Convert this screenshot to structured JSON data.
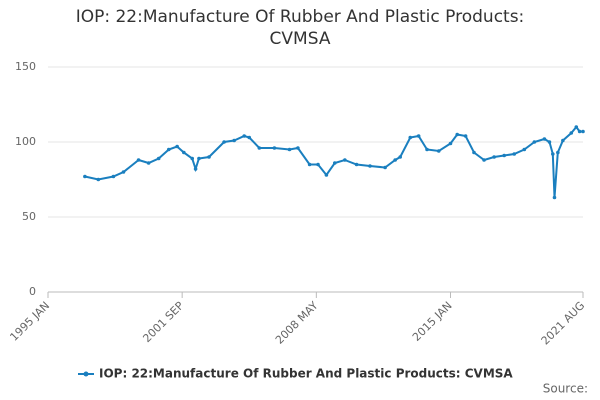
{
  "chart_data": {
    "type": "line",
    "title": "IOP: 22:Manufacture Of Rubber And Plastic Products: CVMSA",
    "x": [
      "1996-11",
      "1997-07",
      "1998-04",
      "1998-10",
      "1999-07",
      "2000-01",
      "2000-07",
      "2001-01",
      "2001-06",
      "2001-10",
      "2002-03",
      "2002-05",
      "2002-07",
      "2003-01",
      "2003-10",
      "2004-04",
      "2004-10",
      "2005-01",
      "2005-07",
      "2006-04",
      "2007-01",
      "2007-06",
      "2008-01",
      "2008-06",
      "2008-11",
      "2009-04",
      "2009-10",
      "2010-05",
      "2011-01",
      "2011-10",
      "2012-04",
      "2012-07",
      "2013-01",
      "2013-06",
      "2013-11",
      "2014-06",
      "2015-01",
      "2015-05",
      "2015-10",
      "2016-03",
      "2016-09",
      "2017-03",
      "2017-09",
      "2018-03",
      "2018-09",
      "2019-03",
      "2019-09",
      "2019-12",
      "2020-02",
      "2020-03",
      "2020-05",
      "2020-08",
      "2021-01",
      "2021-04",
      "2021-06",
      "2021-08"
    ],
    "series": [
      {
        "name": "IOP: 22:Manufacture Of Rubber And Plastic Products: CVMSA",
        "color": "#1a7fbf",
        "values": [
          77,
          75,
          77,
          80,
          88,
          86,
          89,
          95,
          97,
          93,
          89,
          82,
          89,
          90,
          100,
          101,
          104,
          103,
          96,
          96,
          95,
          96,
          85,
          85,
          78,
          86,
          88,
          85,
          84,
          83,
          88,
          90,
          103,
          104,
          95,
          94,
          99,
          105,
          104,
          93,
          88,
          90,
          91,
          92,
          95,
          100,
          102,
          100,
          92,
          63,
          93,
          101,
          106,
          110,
          107,
          107
        ]
      }
    ],
    "xlim": [
      "1995-01",
      "2021-08"
    ],
    "xticks": [
      {
        "value": "1995-01",
        "label": "1995 JAN"
      },
      {
        "value": "2001-09",
        "label": "2001 SEP"
      },
      {
        "value": "2008-05",
        "label": "2008 MAY"
      },
      {
        "value": "2015-01",
        "label": "2015 JAN"
      },
      {
        "value": "2021-08",
        "label": "2021 AUG"
      }
    ],
    "ylim": [
      0,
      150
    ],
    "yticks": [
      0,
      50,
      100,
      150
    ],
    "grid": true,
    "legend": "bottom",
    "source_label": "Source:"
  }
}
